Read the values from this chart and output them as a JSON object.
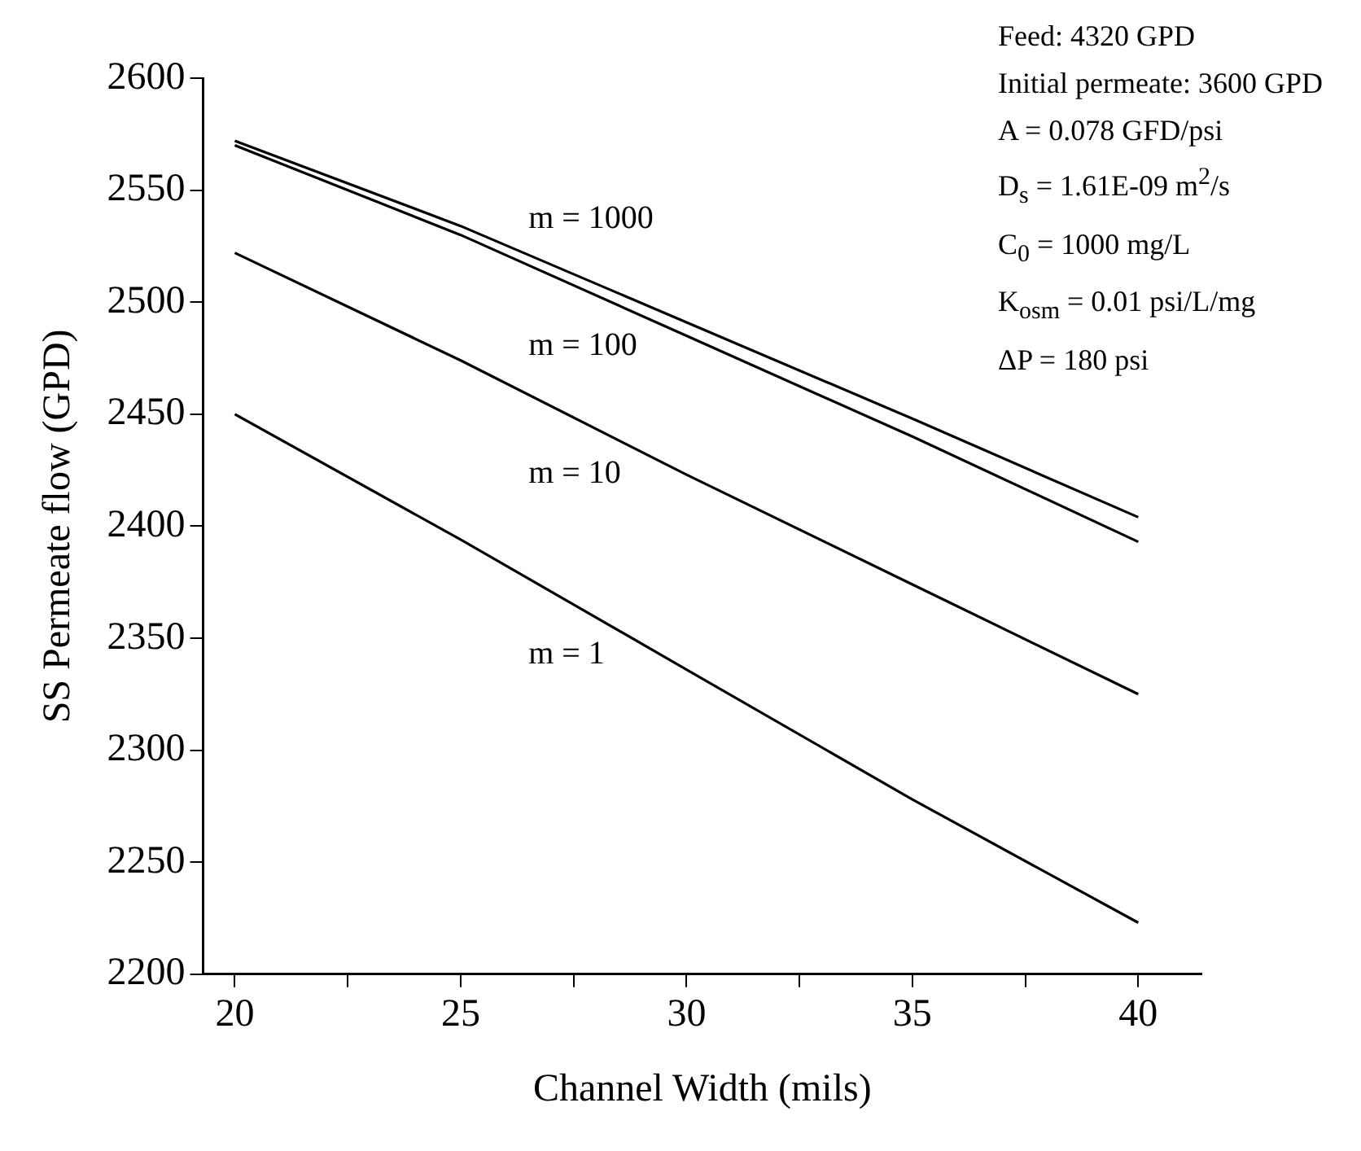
{
  "chart_data": {
    "type": "line",
    "xlabel": "Channel Width (mils)",
    "ylabel": "SS Permeate flow (GPD)",
    "x": [
      20,
      25,
      30,
      35,
      40
    ],
    "series": [
      {
        "name": "m = 1000",
        "color": "#000000",
        "values": [
          2572,
          2534,
          2491,
          2448,
          2404
        ]
      },
      {
        "name": "m = 100",
        "color": "#000000",
        "values": [
          2570,
          2530,
          2485,
          2440,
          2393
        ]
      },
      {
        "name": "m = 10",
        "color": "#000000",
        "values": [
          2522,
          2474,
          2423,
          2374,
          2325
        ]
      },
      {
        "name": "m = 1",
        "color": "#000000",
        "values": [
          2450,
          2394,
          2336,
          2278,
          2223
        ]
      }
    ],
    "xlim": [
      19.3,
      41.4
    ],
    "xticks": [
      20,
      {
        "value": 22.5,
        "label": null
      },
      25,
      {
        "value": 27.5,
        "label": null
      },
      30,
      {
        "value": 32.5,
        "label": null
      },
      35,
      {
        "value": 37.5,
        "label": null
      },
      40
    ],
    "ylim": [
      2200,
      2600
    ],
    "yticks": [
      2200,
      2250,
      2300,
      2350,
      2400,
      2450,
      2500,
      2550,
      2600
    ],
    "grid": false,
    "legend": false,
    "marker": "none",
    "line_style": "solid",
    "annotations": [
      "Feed: 4320 GPD",
      "Initial permeate: 3600 GPD",
      "A = 0.078 GFD/psi",
      "D$_{s}$ = 1.61E-09 m$^{2}$/s",
      "C$_{0}$ = 1000 mg/L",
      "K$_{osm}$ = 0.01 psi/L/mg",
      "ΔP = 180 psi"
    ]
  }
}
